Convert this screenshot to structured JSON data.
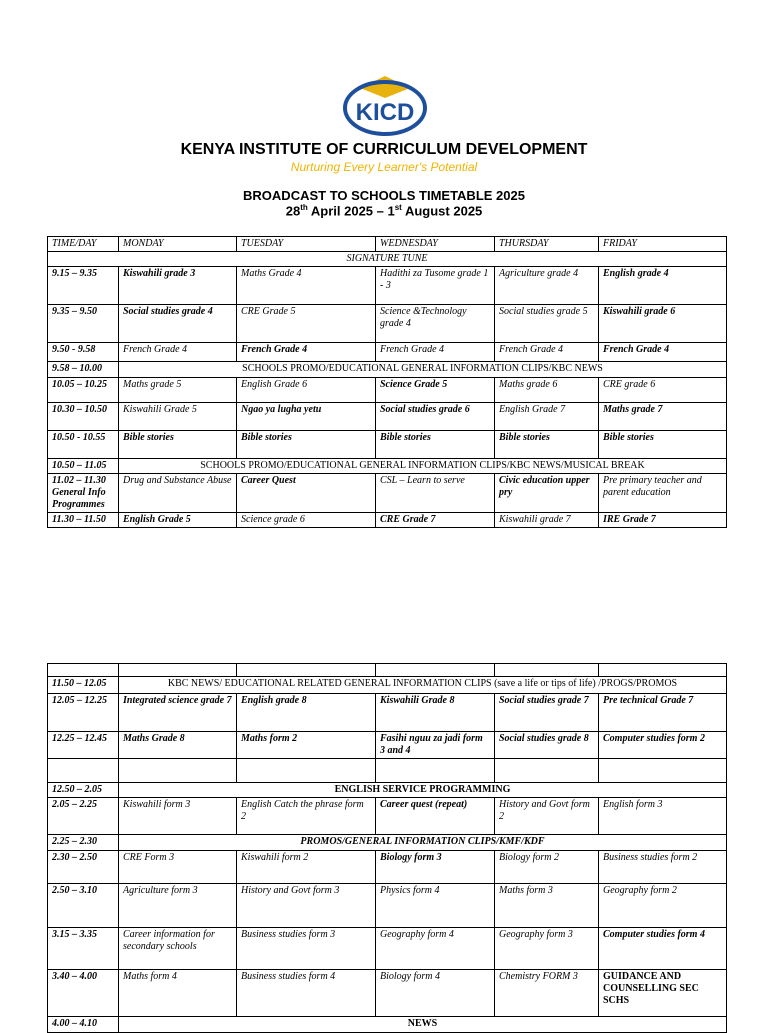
{
  "header": {
    "logo_text": "KICD",
    "title": "KENYA INSTITUTE OF CURRICULUM DEVELOPMENT",
    "tagline": "Nurturing Every Learner's Potential",
    "subtitle": "BROADCAST TO SCHOOLS TIMETABLE 2025",
    "dates": [
      "28",
      "th",
      " April 2025 – 1",
      "st",
      " August 2025"
    ]
  },
  "tables": [
    {
      "columns": [
        "TIME/DAY",
        "MONDAY",
        "TUESDAY",
        "WEDNESDAY",
        "THURSDAY",
        "FRIDAY"
      ],
      "rows": [
        [
          {
            "text": "SIGNATURE TUNE",
            "span": 6
          }
        ],
        [
          "9.15 – 9.35",
          {
            "text": "Kiswahili grade 3",
            "style": "bold-italic"
          },
          "Maths Grade 4",
          "Hadithi za Tusome grade 1 - 3",
          "Agriculture grade 4",
          {
            "text": "English grade 4",
            "style": "bold-italic"
          }
        ],
        [
          "9.35 – 9.50",
          {
            "text": "Social studies grade 4",
            "style": "bold-italic"
          },
          "CRE Grade 5",
          "Science &Technology grade 4",
          "Social studies grade 5",
          {
            "text": "Kiswahili grade 6",
            "style": "bold-italic"
          }
        ],
        [
          "9.50 - 9.58",
          "French Grade 4",
          {
            "text": "French Grade 4",
            "style": "bold-italic"
          },
          "French Grade 4",
          "French Grade 4",
          {
            "text": "French Grade 4",
            "style": "bold-italic"
          }
        ],
        [
          "9.58 – 10.00",
          {
            "text": "SCHOOLS PROMO/EDUCATIONAL GENERAL INFORMATION CLIPS/KBC NEWS",
            "span": 5,
            "style": "plain"
          }
        ],
        [
          "10.05 – 10.25",
          "Maths grade 5",
          "English Grade 6",
          {
            "text": "Science Grade 5",
            "style": "bold-italic"
          },
          "Maths grade 6",
          "CRE grade 6"
        ],
        [
          "10.30 – 10.50",
          "Kiswahili Grade 5",
          {
            "text": "Ngao ya lugha yetu",
            "style": "bold-italic"
          },
          {
            "text": "Social studies grade 6",
            "style": "bold-italic"
          },
          "English Grade 7",
          {
            "text": "Maths grade 7",
            "style": "bold-italic"
          }
        ],
        [
          "10.50 - 10.55",
          {
            "text": "Bible stories",
            "style": "bold-italic"
          },
          {
            "text": "Bible stories",
            "style": "bold-italic"
          },
          {
            "text": "Bible stories",
            "style": "bold-italic"
          },
          {
            "text": "Bible stories",
            "style": "bold-italic"
          },
          {
            "text": "Bible stories",
            "style": "bold-italic"
          }
        ],
        [
          "10.50 – 11.05",
          {
            "text": "SCHOOLS PROMO/EDUCATIONAL GENERAL INFORMATION CLIPS/KBC NEWS/MUSICAL BREAK",
            "span": 5,
            "style": "plain"
          }
        ],
        [
          "11.02 – 11.30 General Info Programmes",
          "Drug and Substance Abuse",
          {
            "text": "Career Quest",
            "style": "bold-italic"
          },
          "CSL – Learn to serve",
          {
            "text": "Civic education upper pry",
            "style": "bold-italic"
          },
          "Pre primary teacher and parent education"
        ],
        [
          "11.30 – 11.50",
          {
            "text": "English Grade 5",
            "style": "bold-italic"
          },
          "Science grade 6",
          {
            "text": "CRE Grade 7",
            "style": "bold-italic"
          },
          "Kiswahili grade 7",
          {
            "text": "IRE Grade 7",
            "style": "bold-italic"
          }
        ]
      ]
    },
    {
      "rows": [
        [
          null,
          null,
          null,
          null,
          null,
          null
        ],
        [
          "11.50 – 12.05",
          {
            "text": "KBC NEWS/ EDUCATIONAL RELATED GENERAL INFORMATION CLIPS (save a life or tips of life) /PROGS/PROMOS",
            "span": 5,
            "style": "plain"
          }
        ],
        [
          "12.05 – 12.25",
          {
            "text": "Integrated science grade 7",
            "style": "bold-italic"
          },
          {
            "text": "English grade 8",
            "style": "bold-italic"
          },
          {
            "text": "Kiswahili Grade 8",
            "style": "bold-italic"
          },
          {
            "text": "Social studies grade 7",
            "style": "bold-italic"
          },
          {
            "text": "Pre technical Grade 7",
            "style": "bold-italic"
          }
        ],
        [
          "12.25 – 12.45",
          {
            "text": "Maths Grade 8",
            "style": "bold-italic"
          },
          {
            "text": "Maths form 2",
            "style": "bold-italic"
          },
          {
            "text": "Fasihi nguu za jadi form 3 and 4",
            "style": "bold-italic"
          },
          {
            "text": "Social studies grade 8",
            "style": "bold-italic"
          },
          {
            "text": "Computer studies form 2",
            "style": "bold-italic"
          }
        ],
        [
          null,
          null,
          null,
          null,
          null,
          null
        ],
        [
          "12.50 – 2.05",
          {
            "text": "ENGLISH SERVICE PROGRAMMING",
            "span": 5,
            "style": "bold"
          }
        ],
        [
          "2.05 – 2.25",
          "Kiswahili form 3",
          "English Catch the phrase form 2",
          {
            "text": "Career quest (repeat)",
            "style": "bold-italic"
          },
          "History and Govt form 2",
          "English form 3"
        ],
        [
          "2.25 – 2.30",
          {
            "text": "PROMOS/GENERAL INFORMATION CLIPS/KMF/KDF",
            "span": 5,
            "style": "bold-italic"
          }
        ],
        [
          "2.30 – 2.50",
          "CRE Form 3",
          "Kiswahili form 2",
          {
            "text": "Biology form 3",
            "style": "bold-italic"
          },
          "Biology form 2",
          "Business studies form 2"
        ],
        [
          "2.50 – 3.10",
          "Agriculture form 3",
          "History and Govt form 3",
          "Physics form 4",
          "Maths form 3",
          "Geography form 2"
        ],
        [
          "3.15 – 3.35",
          "Career information for secondary schools",
          "Business studies form 3",
          "Geography form 4",
          "Geography form 3",
          {
            "text": "Computer studies form 4",
            "style": "bold-italic"
          }
        ],
        [
          "3.40 – 4.00",
          "Maths form 4",
          "Business studies form 4",
          "Biology form 4",
          "Chemistry FORM 3",
          {
            "text": "GUIDANCE AND COUNSELLING SEC SCHS",
            "style": "bold"
          }
        ],
        [
          "4.00 – 4.10",
          {
            "text": "NEWS",
            "span": 5,
            "style": "bold"
          }
        ]
      ]
    }
  ]
}
